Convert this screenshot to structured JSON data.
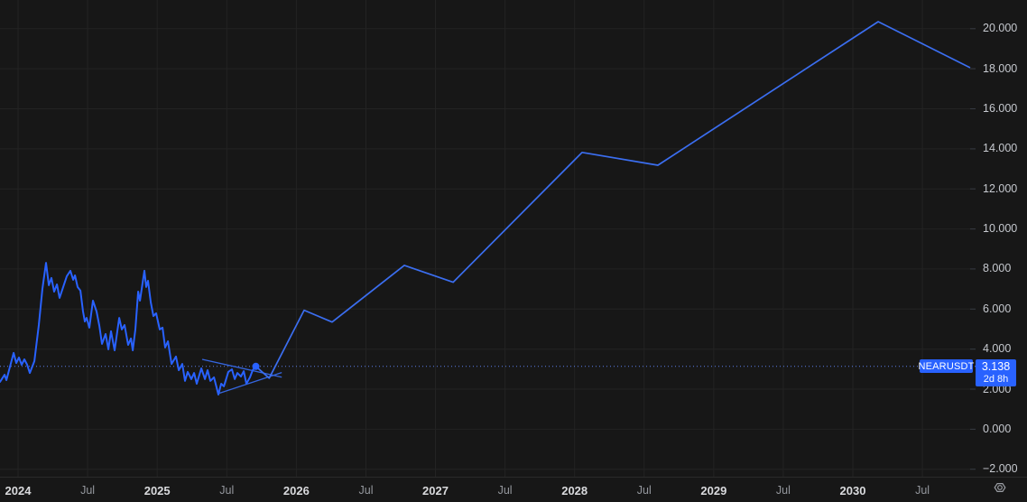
{
  "colors": {
    "background": "#171717",
    "grid": "#232323",
    "axis_tick": "#363a42",
    "accent_blue": "#2962FF",
    "forecast_blue": "#3b6ef0",
    "trendline_blue": "#3566e0",
    "dotted_line_blue": "#5b7fe8",
    "flag_text": "#ffffff",
    "axis_text": "#c6c9cf",
    "axis_text_dim": "#94979d",
    "axis_text_strong": "#d9dadd"
  },
  "ui": {
    "icons": {
      "settings": "hexagon-nut-settings-icon"
    }
  },
  "chart_data": {
    "type": "line",
    "title": "",
    "symbol": "NEARUSDT",
    "current_price": 3.138,
    "current_price_label": "3.138",
    "countdown": "2d 8h",
    "xlabel": "",
    "ylabel": "",
    "xlim": [
      2023.87,
      2030.882
    ],
    "ylim": [
      -2.372,
      21.432
    ],
    "grid": true,
    "legend_position": "none",
    "x_ticks": [
      {
        "t": 2024.0,
        "label": "2024",
        "major": true
      },
      {
        "t": 2024.5,
        "label": "Jul",
        "major": false
      },
      {
        "t": 2025.0,
        "label": "2025",
        "major": true
      },
      {
        "t": 2025.5,
        "label": "Jul",
        "major": false
      },
      {
        "t": 2026.0,
        "label": "2026",
        "major": true
      },
      {
        "t": 2026.5,
        "label": "Jul",
        "major": false
      },
      {
        "t": 2027.0,
        "label": "2027",
        "major": true
      },
      {
        "t": 2027.5,
        "label": "Jul",
        "major": false
      },
      {
        "t": 2028.0,
        "label": "2028",
        "major": true
      },
      {
        "t": 2028.5,
        "label": "Jul",
        "major": false
      },
      {
        "t": 2029.0,
        "label": "2029",
        "major": true
      },
      {
        "t": 2029.5,
        "label": "Jul",
        "major": false
      },
      {
        "t": 2030.0,
        "label": "2030",
        "major": true
      },
      {
        "t": 2030.5,
        "label": "Jul",
        "major": false
      }
    ],
    "y_ticks": [
      {
        "value": 20,
        "label": "20.000"
      },
      {
        "value": 18,
        "label": "18.000"
      },
      {
        "value": 16,
        "label": "16.000"
      },
      {
        "value": 14,
        "label": "14.000"
      },
      {
        "value": 12,
        "label": "12.000"
      },
      {
        "value": 10,
        "label": "10.000"
      },
      {
        "value": 8,
        "label": "8.000"
      },
      {
        "value": 6,
        "label": "6.000"
      },
      {
        "value": 4,
        "label": "4.000"
      },
      {
        "value": 2,
        "label": "2.000"
      },
      {
        "value": 0,
        "label": "0.000"
      },
      {
        "value": -2,
        "label": "−2.000"
      }
    ],
    "series": [
      {
        "name": "historical",
        "points": [
          [
            2023.87,
            2.36
          ],
          [
            2023.903,
            2.72
          ],
          [
            2023.916,
            2.45
          ],
          [
            2023.968,
            3.81
          ],
          [
            2023.987,
            3.31
          ],
          [
            2024.006,
            3.58
          ],
          [
            2024.026,
            3.22
          ],
          [
            2024.045,
            3.49
          ],
          [
            2024.065,
            3.22
          ],
          [
            2024.084,
            2.81
          ],
          [
            2024.117,
            3.4
          ],
          [
            2024.149,
            5.2
          ],
          [
            2024.175,
            7.01
          ],
          [
            2024.201,
            8.31
          ],
          [
            2024.221,
            7.19
          ],
          [
            2024.24,
            7.55
          ],
          [
            2024.259,
            6.87
          ],
          [
            2024.279,
            7.23
          ],
          [
            2024.298,
            6.56
          ],
          [
            2024.324,
            7.1
          ],
          [
            2024.35,
            7.64
          ],
          [
            2024.376,
            7.91
          ],
          [
            2024.396,
            7.46
          ],
          [
            2024.409,
            7.68
          ],
          [
            2024.428,
            7.1
          ],
          [
            2024.448,
            6.92
          ],
          [
            2024.467,
            5.88
          ],
          [
            2024.48,
            5.38
          ],
          [
            2024.493,
            5.56
          ],
          [
            2024.512,
            5.07
          ],
          [
            2024.538,
            6.42
          ],
          [
            2024.564,
            5.88
          ],
          [
            2024.584,
            5.16
          ],
          [
            2024.603,
            4.26
          ],
          [
            2024.629,
            4.75
          ],
          [
            2024.649,
            3.99
          ],
          [
            2024.668,
            4.89
          ],
          [
            2024.694,
            3.94
          ],
          [
            2024.727,
            5.56
          ],
          [
            2024.746,
            4.98
          ],
          [
            2024.765,
            5.2
          ],
          [
            2024.791,
            4.21
          ],
          [
            2024.811,
            4.53
          ],
          [
            2024.824,
            3.94
          ],
          [
            2024.843,
            4.98
          ],
          [
            2024.863,
            6.87
          ],
          [
            2024.876,
            6.42
          ],
          [
            2024.908,
            7.91
          ],
          [
            2024.921,
            7.1
          ],
          [
            2024.934,
            7.41
          ],
          [
            2024.954,
            6.33
          ],
          [
            2024.973,
            5.65
          ],
          [
            2024.992,
            5.79
          ],
          [
            2025.018,
            4.98
          ],
          [
            2025.038,
            5.07
          ],
          [
            2025.057,
            4.08
          ],
          [
            2025.077,
            4.39
          ],
          [
            2025.103,
            3.26
          ],
          [
            2025.135,
            3.63
          ],
          [
            2025.155,
            2.95
          ],
          [
            2025.18,
            3.26
          ],
          [
            2025.2,
            2.41
          ],
          [
            2025.219,
            2.86
          ],
          [
            2025.245,
            2.5
          ],
          [
            2025.265,
            2.81
          ],
          [
            2025.284,
            2.27
          ],
          [
            2025.317,
            3.04
          ],
          [
            2025.343,
            2.5
          ],
          [
            2025.362,
            2.95
          ],
          [
            2025.382,
            2.41
          ],
          [
            2025.408,
            2.59
          ],
          [
            2025.44,
            1.73
          ],
          [
            2025.46,
            2.27
          ],
          [
            2025.479,
            2.14
          ],
          [
            2025.511,
            2.86
          ],
          [
            2025.537,
            2.99
          ],
          [
            2025.557,
            2.5
          ],
          [
            2025.576,
            2.81
          ],
          [
            2025.602,
            2.63
          ],
          [
            2025.622,
            2.9
          ],
          [
            2025.641,
            2.27
          ],
          [
            2025.667,
            2.59
          ],
          [
            2025.686,
            2.95
          ],
          [
            2025.709,
            3.138
          ]
        ]
      },
      {
        "name": "forecast",
        "points": [
          [
            2025.709,
            3.138
          ],
          [
            2025.805,
            2.55
          ],
          [
            2026.056,
            5.94
          ],
          [
            2026.257,
            5.35
          ],
          [
            2026.776,
            8.18
          ],
          [
            2027.127,
            7.34
          ],
          [
            2028.054,
            13.82
          ],
          [
            2028.599,
            13.18
          ],
          [
            2030.182,
            20.35
          ],
          [
            2030.843,
            18.05
          ]
        ]
      }
    ],
    "marker": {
      "t": 2025.709,
      "price": 3.138
    },
    "trendlines": [
      {
        "name": "triangle-upper",
        "from": [
          2025.323,
          3.49
        ],
        "to": [
          2025.895,
          2.6
        ]
      },
      {
        "name": "triangle-lower",
        "from": [
          2025.44,
          1.78
        ],
        "to": [
          2025.895,
          2.83
        ]
      }
    ],
    "price_line": {
      "value": 3.138,
      "style": "dotted"
    }
  }
}
